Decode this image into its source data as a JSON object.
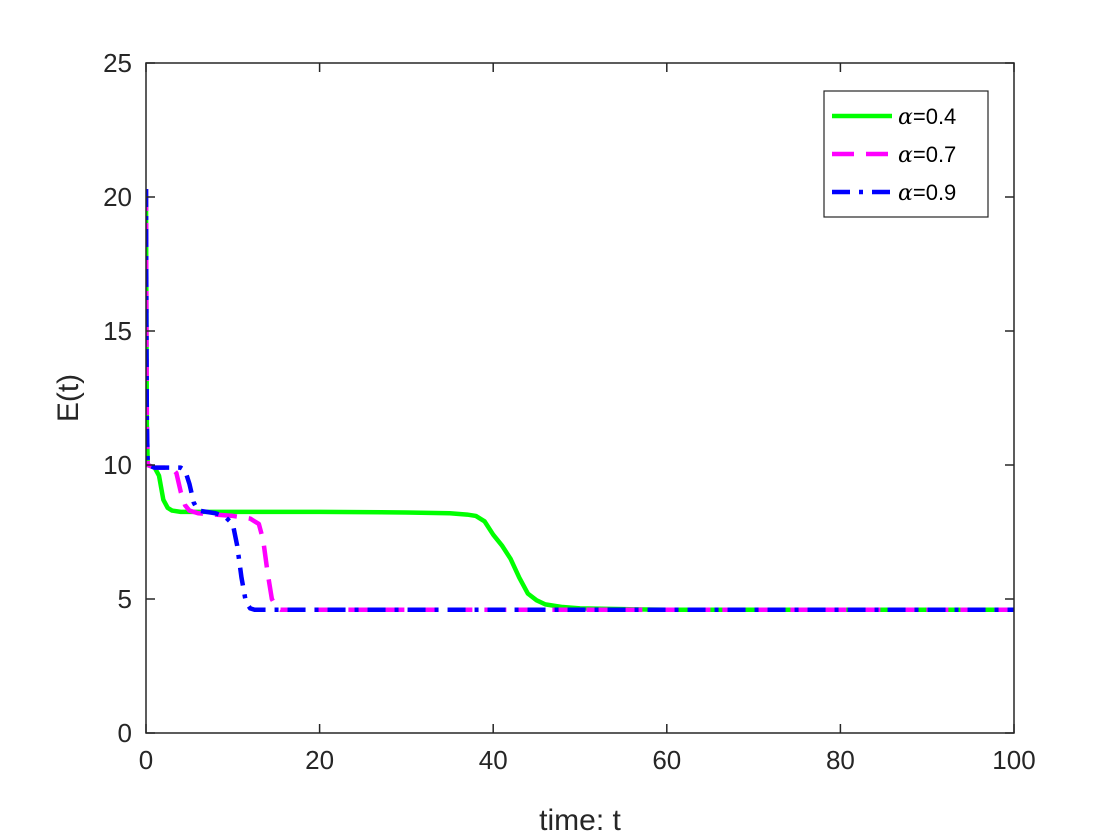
{
  "chart_data": {
    "type": "line",
    "xlabel": "time: t",
    "ylabel": "E(t)",
    "xlim": [
      0,
      100
    ],
    "ylim": [
      0,
      25
    ],
    "xticks": [
      0,
      20,
      40,
      60,
      80,
      100
    ],
    "yticks": [
      0,
      5,
      10,
      15,
      20,
      25
    ],
    "grid": false,
    "legend_position": "top-right",
    "series": [
      {
        "name": "α=0.4",
        "legend_symbol": "α",
        "legend_value": "=0.4",
        "color": "#00ff00",
        "line_style": "solid",
        "x": [
          0,
          0.05,
          0.1,
          0.2,
          1.0,
          1.5,
          2.0,
          2.5,
          3.0,
          4.0,
          6.0,
          10,
          20,
          30,
          35,
          37,
          38,
          39,
          40,
          41,
          42,
          43,
          44,
          45,
          46,
          48,
          50,
          55,
          60,
          70,
          80,
          90,
          100
        ],
        "y": [
          20.3,
          15.0,
          11.5,
          10.0,
          9.9,
          9.6,
          8.7,
          8.4,
          8.3,
          8.25,
          8.25,
          8.25,
          8.25,
          8.23,
          8.2,
          8.15,
          8.1,
          7.9,
          7.4,
          7.0,
          6.5,
          5.8,
          5.2,
          4.95,
          4.8,
          4.7,
          4.65,
          4.62,
          4.6,
          4.6,
          4.6,
          4.6,
          4.6
        ]
      },
      {
        "name": "α=0.7",
        "legend_symbol": "α",
        "legend_value": "=0.7",
        "color": "#ff00ff",
        "line_style": "dashed",
        "x": [
          0,
          0.05,
          0.1,
          0.2,
          1.0,
          3.0,
          3.5,
          4.0,
          4.5,
          5.0,
          6.0,
          8.0,
          10,
          12,
          13,
          13.5,
          14,
          14.5,
          15,
          15.5,
          16,
          20,
          40,
          60,
          80,
          100
        ],
        "y": [
          20.3,
          15.0,
          11.5,
          10.0,
          9.9,
          9.9,
          9.7,
          9.0,
          8.5,
          8.3,
          8.2,
          8.15,
          8.1,
          8.0,
          7.8,
          7.2,
          6.0,
          5.0,
          4.7,
          4.6,
          4.6,
          4.6,
          4.6,
          4.6,
          4.6,
          4.6
        ]
      },
      {
        "name": "α=0.9",
        "legend_symbol": "α",
        "legend_value": "=0.9",
        "color": "#0000ff",
        "line_style": "dashdot",
        "x": [
          0,
          0.05,
          0.1,
          0.2,
          1.0,
          4.0,
          4.5,
          5.0,
          5.5,
          6.0,
          8.0,
          9.0,
          10,
          10.5,
          11,
          11.5,
          12,
          12.5,
          13,
          20,
          40,
          60,
          80,
          100
        ],
        "y": [
          20.3,
          15.0,
          11.5,
          10.0,
          9.9,
          9.9,
          9.8,
          9.3,
          8.6,
          8.3,
          8.2,
          8.1,
          7.8,
          7.0,
          5.8,
          4.9,
          4.65,
          4.6,
          4.6,
          4.6,
          4.6,
          4.6,
          4.6,
          4.6
        ]
      }
    ]
  }
}
